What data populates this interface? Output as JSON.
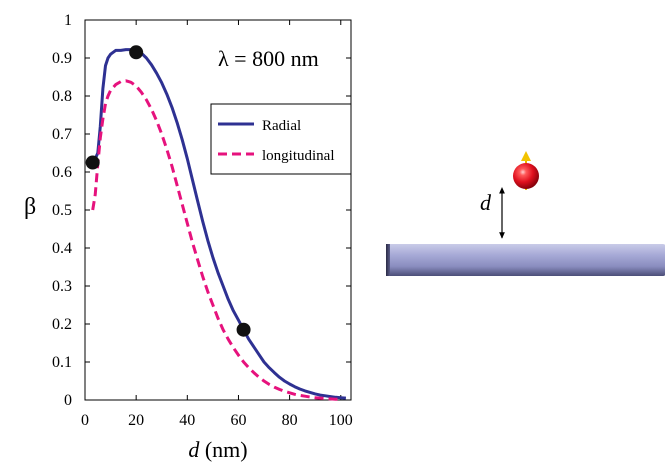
{
  "chart_data": {
    "type": "line",
    "title": "",
    "annotation": "λ = 800 nm",
    "xlabel": "d",
    "xlabel_unit": "(nm)",
    "ylabel": "β",
    "xlim": [
      0,
      104
    ],
    "ylim": [
      0,
      1
    ],
    "xticks": [
      "0",
      "20",
      "40",
      "60",
      "80",
      "100"
    ],
    "xtick_values": [
      0,
      20,
      40,
      60,
      80,
      100
    ],
    "yticks": [
      "0",
      "0.1",
      "0.2",
      "0.3",
      "0.4",
      "0.5",
      "0.6",
      "0.7",
      "0.8",
      "0.9",
      "1"
    ],
    "ytick_values": [
      0,
      0.1,
      0.2,
      0.3,
      0.4,
      0.5,
      0.6,
      0.7,
      0.8,
      0.9,
      1
    ],
    "legend_position": "right, below annotation",
    "grid": false,
    "series": [
      {
        "name": "Radial",
        "color": "#2e3192",
        "style": "solid",
        "x": [
          3,
          5,
          6,
          7,
          8,
          9,
          10,
          12,
          14,
          16,
          18,
          20,
          22,
          24,
          26,
          28,
          30,
          32,
          34,
          36,
          38,
          40,
          42,
          44,
          46,
          48,
          50,
          52,
          54,
          56,
          58,
          60,
          62,
          64,
          66,
          68,
          70,
          72,
          74,
          76,
          78,
          80,
          82,
          84,
          86,
          88,
          90,
          92,
          94,
          96,
          98,
          100,
          102
        ],
        "y": [
          0.62,
          0.65,
          0.72,
          0.82,
          0.88,
          0.9,
          0.91,
          0.92,
          0.92,
          0.922,
          0.922,
          0.919,
          0.913,
          0.9,
          0.882,
          0.86,
          0.835,
          0.805,
          0.77,
          0.73,
          0.685,
          0.635,
          0.58,
          0.525,
          0.47,
          0.42,
          0.375,
          0.335,
          0.3,
          0.265,
          0.235,
          0.21,
          0.185,
          0.16,
          0.14,
          0.12,
          0.1,
          0.085,
          0.072,
          0.06,
          0.05,
          0.042,
          0.035,
          0.029,
          0.024,
          0.02,
          0.016,
          0.013,
          0.011,
          0.009,
          0.007,
          0.006,
          0.005
        ]
      },
      {
        "name": "longitudinal",
        "color": "#e6127d",
        "style": "dashed",
        "x": [
          3,
          4,
          5,
          6,
          7,
          8,
          9,
          10,
          12,
          14,
          16,
          18,
          20,
          22,
          24,
          26,
          28,
          30,
          32,
          34,
          36,
          38,
          40,
          42,
          44,
          46,
          48,
          50,
          52,
          54,
          56,
          58,
          60,
          62,
          64,
          66,
          68,
          70,
          72,
          74,
          76,
          78,
          80,
          82,
          84,
          86,
          88,
          90,
          92,
          94,
          96,
          98,
          100
        ],
        "y": [
          0.5,
          0.54,
          0.62,
          0.69,
          0.74,
          0.78,
          0.8,
          0.815,
          0.83,
          0.838,
          0.84,
          0.836,
          0.826,
          0.81,
          0.79,
          0.765,
          0.735,
          0.7,
          0.66,
          0.615,
          0.565,
          0.515,
          0.465,
          0.415,
          0.37,
          0.325,
          0.285,
          0.25,
          0.215,
          0.185,
          0.16,
          0.138,
          0.118,
          0.1,
          0.085,
          0.072,
          0.06,
          0.05,
          0.041,
          0.034,
          0.028,
          0.023,
          0.019,
          0.015,
          0.012,
          0.01,
          0.008,
          0.006,
          0.005,
          0.004,
          0.003,
          0.002,
          0.002
        ]
      }
    ],
    "highlighted_points": [
      {
        "x": 3,
        "y": 0.625
      },
      {
        "x": 20,
        "y": 0.915
      },
      {
        "x": 62,
        "y": 0.185
      }
    ]
  },
  "inset": {
    "label": "d",
    "colors": {
      "rod": "#9ea0cc",
      "sphere": "#e0101e",
      "dipole_arrow": "#f2c300"
    }
  }
}
